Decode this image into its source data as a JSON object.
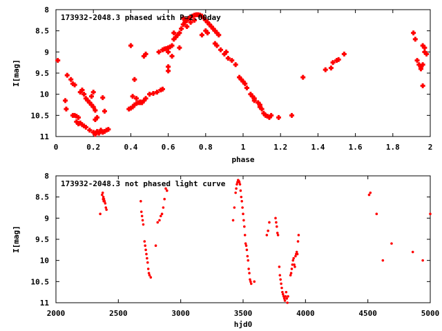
{
  "chart_data": [
    {
      "type": "scatter",
      "title": "173932-2048.3 phased with P=2.00day",
      "xlabel": "phase",
      "ylabel": "I[mag]",
      "xlim": [
        0,
        2
      ],
      "ylim": [
        8,
        11
      ],
      "y_inverted": true,
      "x_ticks": [
        "0",
        "0.2",
        "0.4",
        "0.6",
        "0.8",
        "1",
        "1.2",
        "1.4",
        "1.6",
        "1.8",
        "2"
      ],
      "y_ticks": [
        "8",
        "8.5",
        "9",
        "9.5",
        "10",
        "10.5",
        "11"
      ],
      "marker_color": "#ff0000",
      "grid": false,
      "points": [
        [
          0.01,
          9.2
        ],
        [
          0.05,
          10.15
        ],
        [
          0.055,
          10.35
        ],
        [
          0.06,
          9.55
        ],
        [
          0.08,
          9.65
        ],
        [
          0.09,
          9.75
        ],
        [
          0.1,
          9.78
        ],
        [
          0.09,
          10.5
        ],
        [
          0.1,
          10.5
        ],
        [
          0.11,
          10.52
        ],
        [
          0.12,
          10.55
        ],
        [
          0.11,
          10.65
        ],
        [
          0.12,
          10.7
        ],
        [
          0.13,
          10.68
        ],
        [
          0.14,
          10.72
        ],
        [
          0.15,
          10.75
        ],
        [
          0.16,
          10.78
        ],
        [
          0.13,
          9.95
        ],
        [
          0.14,
          9.9
        ],
        [
          0.15,
          10.0
        ],
        [
          0.16,
          10.1
        ],
        [
          0.17,
          10.15
        ],
        [
          0.18,
          10.2
        ],
        [
          0.19,
          10.25
        ],
        [
          0.2,
          10.3
        ],
        [
          0.21,
          10.38
        ],
        [
          0.2,
          9.95
        ],
        [
          0.19,
          10.05
        ],
        [
          0.18,
          10.85
        ],
        [
          0.2,
          10.9
        ],
        [
          0.21,
          10.95
        ],
        [
          0.22,
          10.88
        ],
        [
          0.23,
          10.92
        ],
        [
          0.24,
          10.85
        ],
        [
          0.25,
          10.9
        ],
        [
          0.26,
          10.88
        ],
        [
          0.27,
          10.85
        ],
        [
          0.28,
          10.83
        ],
        [
          0.21,
          10.6
        ],
        [
          0.22,
          10.55
        ],
        [
          0.26,
          10.4
        ],
        [
          0.25,
          10.08
        ],
        [
          0.39,
          10.35
        ],
        [
          0.4,
          10.33
        ],
        [
          0.41,
          10.3
        ],
        [
          0.42,
          10.25
        ],
        [
          0.43,
          10.22
        ],
        [
          0.44,
          10.2
        ],
        [
          0.45,
          10.18
        ],
        [
          0.46,
          10.2
        ],
        [
          0.47,
          10.15
        ],
        [
          0.48,
          10.1
        ],
        [
          0.5,
          10.0
        ],
        [
          0.52,
          9.98
        ],
        [
          0.54,
          9.95
        ],
        [
          0.56,
          9.9
        ],
        [
          0.57,
          9.88
        ],
        [
          0.41,
          10.05
        ],
        [
          0.43,
          10.1
        ],
        [
          0.45,
          10.2
        ],
        [
          0.42,
          9.65
        ],
        [
          0.4,
          8.85
        ],
        [
          0.47,
          9.1
        ],
        [
          0.48,
          9.05
        ],
        [
          0.55,
          9.0
        ],
        [
          0.57,
          8.95
        ],
        [
          0.58,
          8.93
        ],
        [
          0.59,
          8.92
        ],
        [
          0.6,
          8.9
        ],
        [
          0.61,
          8.88
        ],
        [
          0.62,
          8.85
        ],
        [
          0.6,
          9.0
        ],
        [
          0.63,
          8.7
        ],
        [
          0.64,
          8.65
        ],
        [
          0.65,
          8.6
        ],
        [
          0.66,
          8.55
        ],
        [
          0.67,
          8.45
        ],
        [
          0.68,
          8.35
        ],
        [
          0.69,
          8.3
        ],
        [
          0.7,
          8.25
        ],
        [
          0.71,
          8.2
        ],
        [
          0.72,
          8.18
        ],
        [
          0.73,
          8.15
        ],
        [
          0.74,
          8.13
        ],
        [
          0.75,
          8.12
        ],
        [
          0.76,
          8.12
        ],
        [
          0.77,
          8.13
        ],
        [
          0.78,
          8.15
        ],
        [
          0.79,
          8.2
        ],
        [
          0.7,
          8.4
        ],
        [
          0.72,
          8.3
        ],
        [
          0.74,
          8.25
        ],
        [
          0.6,
          9.35
        ],
        [
          0.6,
          9.45
        ],
        [
          0.62,
          9.1
        ],
        [
          0.63,
          8.55
        ],
        [
          0.66,
          8.9
        ],
        [
          0.68,
          8.2
        ],
        [
          0.69,
          8.25
        ],
        [
          0.8,
          8.25
        ],
        [
          0.81,
          8.3
        ],
        [
          0.82,
          8.35
        ],
        [
          0.83,
          8.4
        ],
        [
          0.84,
          8.45
        ],
        [
          0.85,
          8.5
        ],
        [
          0.86,
          8.55
        ],
        [
          0.87,
          8.6
        ],
        [
          0.8,
          8.5
        ],
        [
          0.81,
          8.55
        ],
        [
          0.78,
          8.6
        ],
        [
          0.85,
          8.8
        ],
        [
          0.86,
          8.85
        ],
        [
          0.88,
          8.95
        ],
        [
          0.9,
          9.05
        ],
        [
          0.92,
          9.15
        ],
        [
          0.94,
          9.2
        ],
        [
          0.96,
          9.3
        ],
        [
          0.91,
          9.0
        ],
        [
          0.98,
          9.6
        ],
        [
          0.99,
          9.65
        ],
        [
          1.0,
          9.7
        ],
        [
          1.01,
          9.75
        ],
        [
          1.02,
          9.85
        ],
        [
          1.04,
          10.0
        ],
        [
          1.05,
          10.05
        ],
        [
          1.06,
          10.1
        ],
        [
          1.08,
          10.2
        ],
        [
          1.09,
          10.3
        ],
        [
          1.1,
          10.35
        ],
        [
          1.11,
          10.45
        ],
        [
          1.12,
          10.5
        ],
        [
          1.13,
          10.52
        ],
        [
          1.14,
          10.55
        ],
        [
          1.15,
          10.5
        ],
        [
          1.06,
          10.15
        ],
        [
          1.09,
          10.25
        ],
        [
          1.19,
          10.55
        ],
        [
          1.26,
          10.5
        ],
        [
          1.32,
          9.6
        ],
        [
          1.44,
          9.42
        ],
        [
          1.47,
          9.38
        ],
        [
          1.48,
          9.25
        ],
        [
          1.5,
          9.2
        ],
        [
          1.51,
          9.18
        ],
        [
          1.54,
          9.05
        ],
        [
          1.91,
          8.55
        ],
        [
          1.92,
          8.7
        ],
        [
          1.93,
          9.2
        ],
        [
          1.94,
          9.3
        ],
        [
          1.95,
          9.4
        ],
        [
          1.96,
          8.85
        ],
        [
          1.97,
          8.9
        ],
        [
          1.96,
          9.3
        ],
        [
          1.95,
          9.35
        ],
        [
          1.96,
          9.8
        ],
        [
          1.98,
          9.05
        ],
        [
          1.97,
          9.0
        ]
      ]
    },
    {
      "type": "scatter",
      "title": "173932-2048.3 not phased light curve",
      "xlabel": "hjd0",
      "ylabel": "I[mag]",
      "xlim": [
        2000,
        5000
      ],
      "ylim": [
        8,
        11
      ],
      "y_inverted": true,
      "x_ticks": [
        "2000",
        "2500",
        "3000",
        "3500",
        "4000",
        "4500",
        "5000"
      ],
      "y_ticks": [
        "8",
        "8.5",
        "9",
        "9.5",
        "10",
        "10.5",
        "11"
      ],
      "marker_color": "#ff0000",
      "grid": false,
      "points": [
        [
          2355,
          8.9
        ],
        [
          2370,
          8.45
        ],
        [
          2375,
          8.4
        ],
        [
          2380,
          8.5
        ],
        [
          2385,
          8.55
        ],
        [
          2390,
          8.6
        ],
        [
          2395,
          8.65
        ],
        [
          2400,
          8.75
        ],
        [
          2405,
          8.8
        ],
        [
          2378,
          8.55
        ],
        [
          2383,
          8.6
        ],
        [
          2680,
          8.6
        ],
        [
          2685,
          8.85
        ],
        [
          2690,
          8.95
        ],
        [
          2695,
          9.05
        ],
        [
          2700,
          9.15
        ],
        [
          2710,
          9.55
        ],
        [
          2715,
          9.65
        ],
        [
          2720,
          9.75
        ],
        [
          2725,
          9.85
        ],
        [
          2730,
          9.95
        ],
        [
          2735,
          10.05
        ],
        [
          2740,
          10.2
        ],
        [
          2745,
          10.3
        ],
        [
          2750,
          10.35
        ],
        [
          2760,
          10.4
        ],
        [
          2800,
          9.65
        ],
        [
          2815,
          9.1
        ],
        [
          2830,
          9.05
        ],
        [
          2840,
          8.95
        ],
        [
          2850,
          8.9
        ],
        [
          2860,
          8.75
        ],
        [
          2870,
          8.55
        ],
        [
          2880,
          8.3
        ],
        [
          2890,
          8.35
        ],
        [
          3420,
          9.05
        ],
        [
          3430,
          8.75
        ],
        [
          3440,
          8.4
        ],
        [
          3445,
          8.3
        ],
        [
          3450,
          8.2
        ],
        [
          3455,
          8.15
        ],
        [
          3460,
          8.1
        ],
        [
          3465,
          8.12
        ],
        [
          3470,
          8.15
        ],
        [
          3475,
          8.2
        ],
        [
          3480,
          8.35
        ],
        [
          3485,
          8.5
        ],
        [
          3490,
          8.6
        ],
        [
          3495,
          8.75
        ],
        [
          3500,
          8.9
        ],
        [
          3505,
          9.05
        ],
        [
          3510,
          9.2
        ],
        [
          3515,
          9.4
        ],
        [
          3520,
          9.6
        ],
        [
          3525,
          9.65
        ],
        [
          3530,
          9.75
        ],
        [
          3535,
          9.9
        ],
        [
          3540,
          10.0
        ],
        [
          3545,
          10.2
        ],
        [
          3550,
          10.3
        ],
        [
          3555,
          10.45
        ],
        [
          3560,
          10.5
        ],
        [
          3565,
          10.55
        ],
        [
          3590,
          10.5
        ],
        [
          3690,
          9.4
        ],
        [
          3700,
          9.3
        ],
        [
          3710,
          9.1
        ],
        [
          3760,
          9.0
        ],
        [
          3765,
          9.1
        ],
        [
          3770,
          9.2
        ],
        [
          3775,
          9.35
        ],
        [
          3780,
          9.4
        ],
        [
          3790,
          10.15
        ],
        [
          3795,
          10.35
        ],
        [
          3800,
          10.45
        ],
        [
          3805,
          10.55
        ],
        [
          3810,
          10.65
        ],
        [
          3815,
          10.75
        ],
        [
          3820,
          10.8
        ],
        [
          3825,
          10.85
        ],
        [
          3830,
          10.9
        ],
        [
          3835,
          10.95
        ],
        [
          3840,
          10.85
        ],
        [
          3845,
          10.75
        ],
        [
          3850,
          10.9
        ],
        [
          3855,
          11.0
        ],
        [
          3860,
          10.85
        ],
        [
          3880,
          10.35
        ],
        [
          3885,
          10.3
        ],
        [
          3890,
          10.2
        ],
        [
          3895,
          10.1
        ],
        [
          3900,
          10.0
        ],
        [
          3905,
          9.95
        ],
        [
          3910,
          10.1
        ],
        [
          3915,
          10.15
        ],
        [
          3920,
          9.9
        ],
        [
          3925,
          9.85
        ],
        [
          3930,
          9.8
        ],
        [
          3935,
          9.85
        ],
        [
          3940,
          9.55
        ],
        [
          3945,
          9.4
        ],
        [
          4510,
          8.45
        ],
        [
          4520,
          8.4
        ],
        [
          4570,
          8.9
        ],
        [
          4620,
          10.0
        ],
        [
          4690,
          9.6
        ],
        [
          4860,
          9.8
        ],
        [
          4940,
          10.0
        ],
        [
          5000,
          8.9
        ]
      ]
    }
  ]
}
